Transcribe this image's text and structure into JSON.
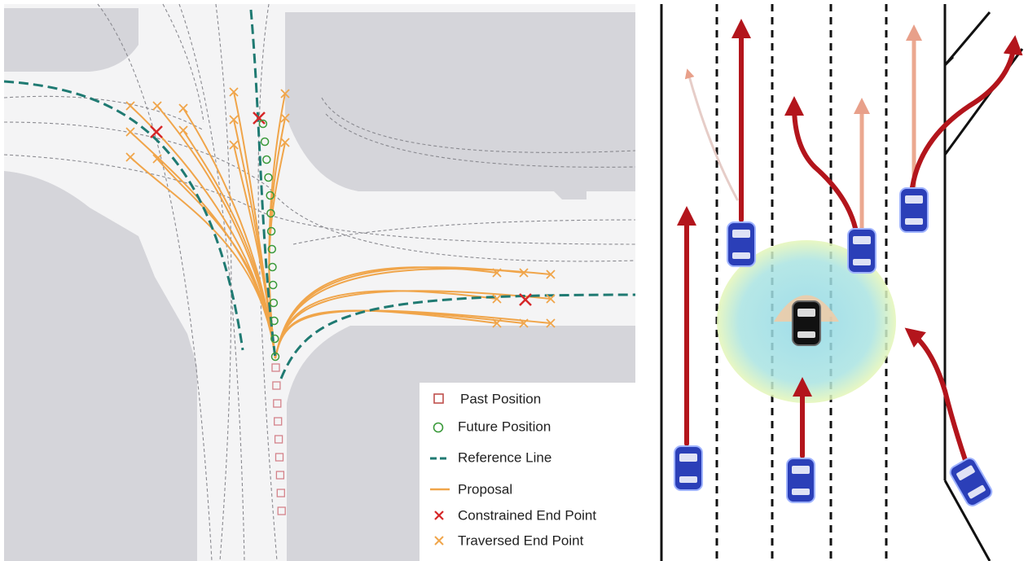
{
  "legend": {
    "items": [
      {
        "label": "Past Position"
      },
      {
        "label": "Future Position"
      },
      {
        "label": "Reference Line"
      },
      {
        "label": "Proposal"
      },
      {
        "label": "Constrained End Point"
      },
      {
        "label": "Traversed End Point"
      }
    ]
  }
}
